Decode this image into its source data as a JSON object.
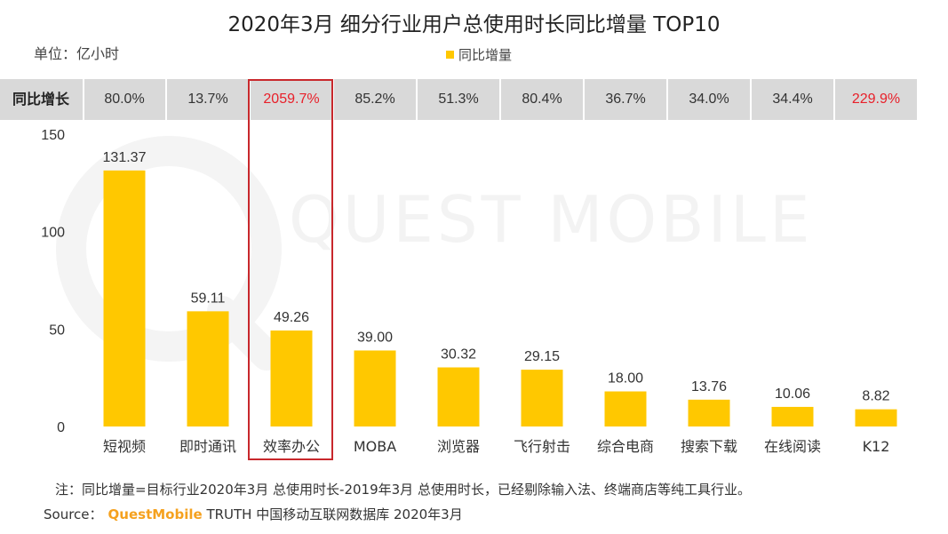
{
  "title": "2020年3月 细分行业用户总使用时长同比增量 TOP10",
  "unit": "单位：亿小时",
  "legend": "同比增量",
  "yoy_label": "同比增长",
  "yoy_values": [
    "80.0%",
    "13.7%",
    "2059.7%",
    "85.2%",
    "51.3%",
    "80.4%",
    "36.7%",
    "34.0%",
    "34.4%",
    "229.9%"
  ],
  "yoy_highlight": [
    false,
    false,
    true,
    false,
    false,
    false,
    false,
    false,
    false,
    true
  ],
  "watermark": "QUEST MOBILE",
  "note": "注：同比增量=目标行业2020年3月 总使用时长-2019年3月 总使用时长，已经剔除输入法、终端商店等纯工具行业。",
  "source": {
    "label": "Source：",
    "brand": "QuestMobile",
    "text": "TRUTH 中国移动互联网数据库 2020年3月"
  },
  "colors": {
    "bar": "#FFC800",
    "highlight": "#E8202A",
    "box": "#C8282C"
  },
  "chart_data": {
    "type": "bar",
    "title": "2020年3月 细分行业用户总使用时长同比增量 TOP10",
    "ylabel": "亿小时",
    "categories": [
      "短视频",
      "即时通讯",
      "效率办公",
      "MOBA",
      "浏览器",
      "飞行射击",
      "综合电商",
      "搜索下载",
      "在线阅读",
      "K12"
    ],
    "values": [
      131.37,
      59.11,
      49.26,
      39.0,
      30.32,
      29.15,
      18.0,
      13.76,
      10.06,
      8.82
    ],
    "labels": [
      "131.37",
      "59.11",
      "49.26",
      "39.00",
      "30.32",
      "29.15",
      "18.00",
      "13.76",
      "10.06",
      "8.82"
    ],
    "series": [
      {
        "name": "同比增量",
        "values": [
          131.37,
          59.11,
          49.26,
          39.0,
          30.32,
          29.15,
          18.0,
          13.76,
          10.06,
          8.82
        ]
      }
    ],
    "yticks": [
      0,
      50,
      100,
      150
    ],
    "ylim": [
      0,
      150
    ],
    "highlighted_category": "效率办公"
  }
}
